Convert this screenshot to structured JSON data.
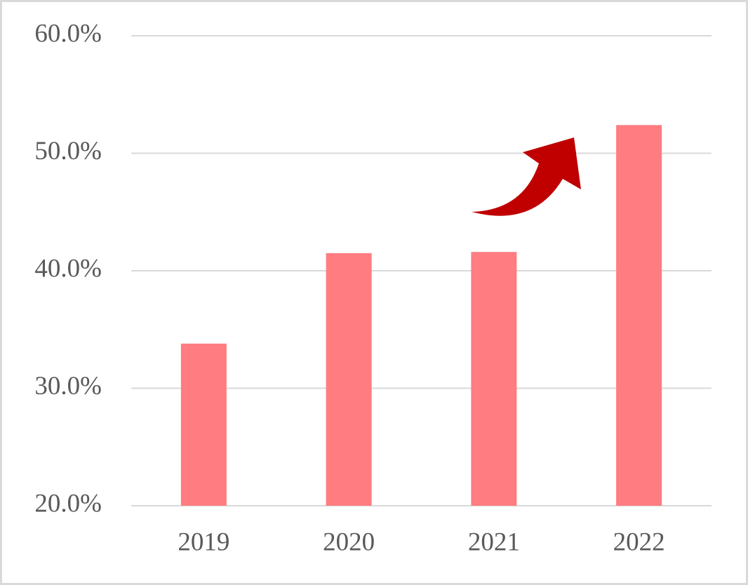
{
  "chart_data": {
    "type": "bar",
    "categories": [
      "2019",
      "2020",
      "2021",
      "2022"
    ],
    "values": [
      33.8,
      41.5,
      41.6,
      52.4
    ],
    "color": "#ff7c80",
    "ylim": [
      20,
      60
    ],
    "yticks": [
      {
        "value": 20,
        "label": "20.0%"
      },
      {
        "value": 30,
        "label": "30.0%"
      },
      {
        "value": 40,
        "label": "40.0%"
      },
      {
        "value": 50,
        "label": "50.0%"
      },
      {
        "value": 60,
        "label": "60.0%"
      }
    ],
    "grid": true
  }
}
